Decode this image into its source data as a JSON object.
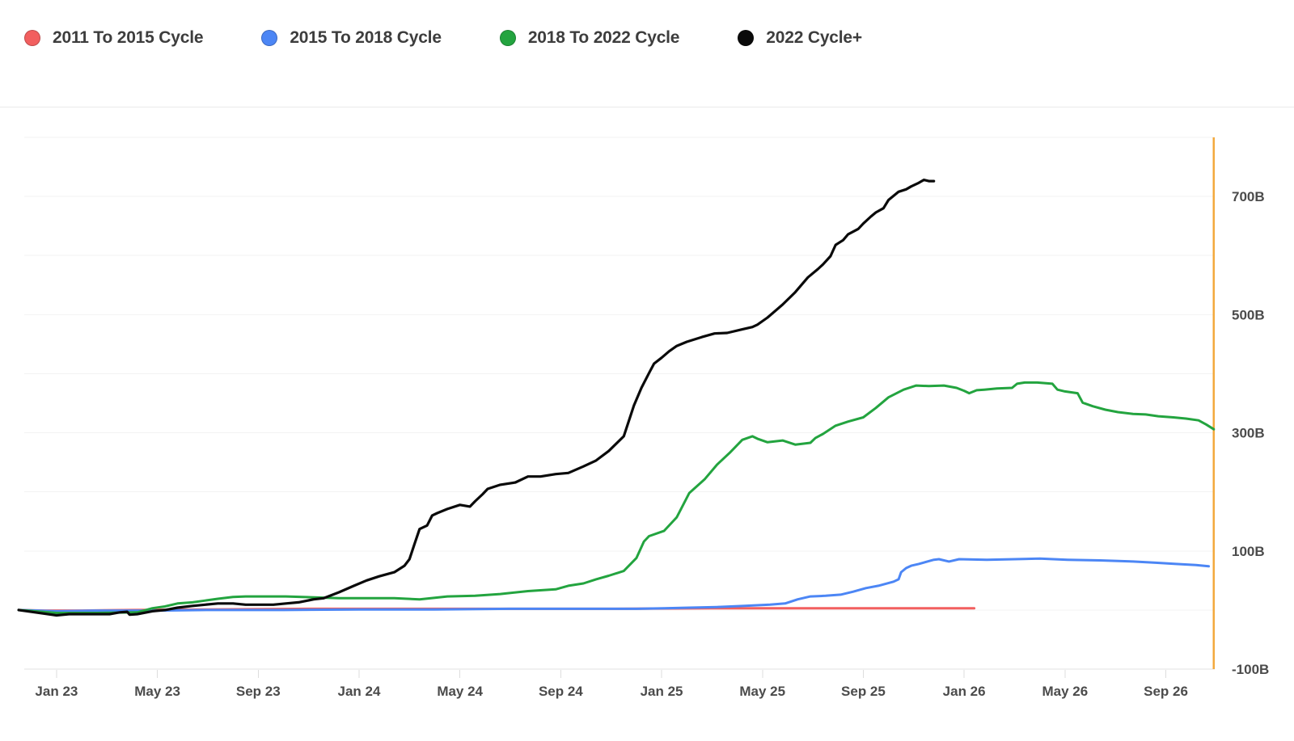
{
  "legend": {
    "items": [
      {
        "label": "2011 To 2015 Cycle",
        "color": "#F25F5F"
      },
      {
        "label": "2015 To 2018 Cycle",
        "color": "#4C86F5"
      },
      {
        "label": "2018 To 2022 Cycle",
        "color": "#23A43F"
      },
      {
        "label": "2022 Cycle+",
        "color": "#0A0A0A"
      }
    ]
  },
  "style": {
    "background": "#ffffff",
    "grid_color": "#f3f3f3",
    "axis_line_color": "#e2e2e2",
    "tick_mark_color": "#dddddd",
    "tick_text_color": "#4b4b4b",
    "legend_text_color": "#3d3d3d",
    "divider_color": "#ebebeb",
    "marker_line_color": "#F3A93D"
  },
  "chart_data": {
    "type": "line",
    "unit": "B",
    "x_unit": "months since Jan 2023",
    "legend_position": "top-left",
    "grid": "horizontal-only",
    "xlim": [
      -1.28,
      45.94
    ],
    "ylim": [
      -100,
      800
    ],
    "y_grid_values": [
      800,
      700,
      600,
      500,
      400,
      300,
      200,
      100,
      0,
      -100
    ],
    "x_ticks": [
      {
        "label": "Jan 23",
        "m": 0
      },
      {
        "label": "May 23",
        "m": 4
      },
      {
        "label": "Sep 23",
        "m": 8
      },
      {
        "label": "Jan 24",
        "m": 12
      },
      {
        "label": "May 24",
        "m": 16
      },
      {
        "label": "Sep 24",
        "m": 20
      },
      {
        "label": "Jan 25",
        "m": 24
      },
      {
        "label": "May 25",
        "m": 28
      },
      {
        "label": "Sep 25",
        "m": 32
      },
      {
        "label": "Jan 26",
        "m": 36
      },
      {
        "label": "May 26",
        "m": 40
      },
      {
        "label": "Sep 26",
        "m": 44
      }
    ],
    "y_ticks": [
      {
        "label": "700B",
        "v": 700
      },
      {
        "label": "500B",
        "v": 500
      },
      {
        "label": "300B",
        "v": 300
      },
      {
        "label": "100B",
        "v": 100
      },
      {
        "label": "-100B",
        "v": -100
      }
    ],
    "end_marker": {
      "name": "cycle-end-vertical-line",
      "color": "#F3A93D",
      "m": 45.9
    },
    "series": [
      {
        "name": "2011 To 2015 Cycle",
        "color": "#F25F5F",
        "width": 3,
        "points": [
          [
            -1.5,
            0
          ],
          [
            -0.5,
            -1
          ],
          [
            1,
            -1
          ],
          [
            3,
            0
          ],
          [
            6,
            1
          ],
          [
            10,
            2
          ],
          [
            14,
            2
          ],
          [
            18,
            2
          ],
          [
            22,
            2
          ],
          [
            26,
            3
          ],
          [
            30,
            3
          ],
          [
            34,
            3
          ],
          [
            36.4,
            3
          ]
        ]
      },
      {
        "name": "2015 To 2018 Cycle",
        "color": "#4C86F5",
        "width": 3,
        "points": [
          [
            -1.5,
            0
          ],
          [
            0,
            -2
          ],
          [
            1.5,
            -1
          ],
          [
            4,
            -1
          ],
          [
            6,
            0
          ],
          [
            9,
            0
          ],
          [
            12,
            1
          ],
          [
            15,
            1
          ],
          [
            18,
            2
          ],
          [
            21,
            2
          ],
          [
            23,
            2
          ],
          [
            24.1,
            3
          ],
          [
            25.1,
            4
          ],
          [
            26.2,
            5
          ],
          [
            27.3,
            7
          ],
          [
            28.3,
            9
          ],
          [
            28.9,
            11
          ],
          [
            29.4,
            18
          ],
          [
            29.9,
            23
          ],
          [
            30.5,
            24
          ],
          [
            31.1,
            26
          ],
          [
            31.6,
            31
          ],
          [
            32.1,
            37
          ],
          [
            32.6,
            41
          ],
          [
            33.2,
            48
          ],
          [
            33.4,
            52
          ],
          [
            33.5,
            64
          ],
          [
            33.7,
            71
          ],
          [
            33.9,
            75
          ],
          [
            34.2,
            78
          ],
          [
            34.8,
            85
          ],
          [
            35,
            86
          ],
          [
            35.4,
            82
          ],
          [
            35.8,
            86
          ],
          [
            36.9,
            85
          ],
          [
            38,
            86
          ],
          [
            39,
            87
          ],
          [
            40.1,
            85
          ],
          [
            41.4,
            84
          ],
          [
            42.7,
            82
          ],
          [
            43.6,
            80
          ],
          [
            44.4,
            78
          ],
          [
            45.2,
            76
          ],
          [
            45.7,
            74
          ]
        ]
      },
      {
        "name": "2018 To 2022 Cycle",
        "color": "#23A43F",
        "width": 3,
        "points": [
          [
            -1.5,
            0
          ],
          [
            0,
            -5
          ],
          [
            1.6,
            -5
          ],
          [
            3.2,
            -4
          ],
          [
            3.8,
            3
          ],
          [
            4.3,
            6
          ],
          [
            4.8,
            11
          ],
          [
            5.4,
            13
          ],
          [
            5.9,
            16
          ],
          [
            6.4,
            19
          ],
          [
            7,
            22
          ],
          [
            7.5,
            23
          ],
          [
            9.1,
            23
          ],
          [
            11.2,
            20
          ],
          [
            13.4,
            20
          ],
          [
            14.4,
            18
          ],
          [
            15.5,
            23
          ],
          [
            16.6,
            24
          ],
          [
            17.6,
            27
          ],
          [
            18.7,
            32
          ],
          [
            19.8,
            35
          ],
          [
            20.3,
            41
          ],
          [
            20.9,
            45
          ],
          [
            21.4,
            52
          ],
          [
            21.9,
            58
          ],
          [
            22.5,
            66
          ],
          [
            23,
            88
          ],
          [
            23.3,
            116
          ],
          [
            23.5,
            125
          ],
          [
            24.1,
            134
          ],
          [
            24.6,
            157
          ],
          [
            25.1,
            198
          ],
          [
            25.7,
            221
          ],
          [
            26.2,
            246
          ],
          [
            26.7,
            266
          ],
          [
            27.2,
            288
          ],
          [
            27.6,
            294
          ],
          [
            27.8,
            290
          ],
          [
            28.2,
            284
          ],
          [
            28.8,
            287
          ],
          [
            29.3,
            280
          ],
          [
            29.9,
            283
          ],
          [
            30.1,
            291
          ],
          [
            30.4,
            298
          ],
          [
            30.9,
            312
          ],
          [
            31.4,
            319
          ],
          [
            32,
            326
          ],
          [
            32.5,
            342
          ],
          [
            33,
            360
          ],
          [
            33.6,
            373
          ],
          [
            34.1,
            380
          ],
          [
            34.6,
            379
          ],
          [
            35.2,
            380
          ],
          [
            35.7,
            376
          ],
          [
            36,
            371
          ],
          [
            36.2,
            367
          ],
          [
            36.5,
            372
          ],
          [
            36.8,
            373
          ],
          [
            37.3,
            375
          ],
          [
            37.9,
            376
          ],
          [
            38.1,
            383
          ],
          [
            38.4,
            385
          ],
          [
            38.9,
            385
          ],
          [
            39.5,
            383
          ],
          [
            39.7,
            373
          ],
          [
            40,
            370
          ],
          [
            40.5,
            367
          ],
          [
            40.7,
            351
          ],
          [
            41.1,
            345
          ],
          [
            41.6,
            339
          ],
          [
            42.1,
            335
          ],
          [
            42.7,
            332
          ],
          [
            43.2,
            331
          ],
          [
            43.7,
            328
          ],
          [
            44.3,
            326
          ],
          [
            44.8,
            324
          ],
          [
            45.3,
            321
          ],
          [
            45.6,
            314
          ],
          [
            45.9,
            306
          ]
        ]
      },
      {
        "name": "2022 Cycle+",
        "color": "#0A0A0A",
        "width": 3.2,
        "points": [
          [
            -1.5,
            0
          ],
          [
            0,
            -9
          ],
          [
            0.5,
            -7
          ],
          [
            2.1,
            -7
          ],
          [
            2.5,
            -4
          ],
          [
            2.8,
            -3
          ],
          [
            2.9,
            -8
          ],
          [
            3.2,
            -7
          ],
          [
            3.8,
            -2
          ],
          [
            4.3,
            0
          ],
          [
            4.8,
            4
          ],
          [
            5.4,
            7
          ],
          [
            5.9,
            9
          ],
          [
            6.4,
            11
          ],
          [
            7,
            11
          ],
          [
            7.5,
            9
          ],
          [
            8.6,
            9
          ],
          [
            9.1,
            11
          ],
          [
            9.6,
            13
          ],
          [
            10.2,
            18
          ],
          [
            10.6,
            20
          ],
          [
            11.2,
            30
          ],
          [
            11.8,
            41
          ],
          [
            12.3,
            50
          ],
          [
            12.8,
            57
          ],
          [
            13.4,
            64
          ],
          [
            13.8,
            75
          ],
          [
            14,
            86
          ],
          [
            14.2,
            112
          ],
          [
            14.4,
            137
          ],
          [
            14.7,
            143
          ],
          [
            14.9,
            160
          ],
          [
            15.1,
            164
          ],
          [
            15.5,
            171
          ],
          [
            16,
            178
          ],
          [
            16.4,
            175
          ],
          [
            16.6,
            184
          ],
          [
            16.9,
            196
          ],
          [
            17.1,
            205
          ],
          [
            17.6,
            212
          ],
          [
            18.2,
            216
          ],
          [
            18.7,
            226
          ],
          [
            19.2,
            226
          ],
          [
            19.8,
            230
          ],
          [
            20.3,
            232
          ],
          [
            20.9,
            243
          ],
          [
            21.4,
            253
          ],
          [
            21.9,
            269
          ],
          [
            22.5,
            294
          ],
          [
            22.9,
            346
          ],
          [
            23.2,
            376
          ],
          [
            23.5,
            401
          ],
          [
            23.7,
            417
          ],
          [
            24,
            427
          ],
          [
            24.3,
            438
          ],
          [
            24.6,
            447
          ],
          [
            25,
            454
          ],
          [
            25.6,
            462
          ],
          [
            26.1,
            468
          ],
          [
            26.6,
            469
          ],
          [
            27.2,
            475
          ],
          [
            27.6,
            479
          ],
          [
            27.8,
            483
          ],
          [
            28.2,
            495
          ],
          [
            28.8,
            517
          ],
          [
            29.3,
            538
          ],
          [
            29.8,
            563
          ],
          [
            30.2,
            577
          ],
          [
            30.4,
            585
          ],
          [
            30.7,
            599
          ],
          [
            30.9,
            618
          ],
          [
            31.2,
            626
          ],
          [
            31.4,
            636
          ],
          [
            31.8,
            645
          ],
          [
            32,
            654
          ],
          [
            32.3,
            666
          ],
          [
            32.5,
            673
          ],
          [
            32.8,
            680
          ],
          [
            33,
            694
          ],
          [
            33.4,
            708
          ],
          [
            33.7,
            712
          ],
          [
            33.9,
            717
          ],
          [
            34.2,
            723
          ],
          [
            34.4,
            728
          ],
          [
            34.6,
            726
          ],
          [
            34.8,
            726
          ]
        ]
      }
    ]
  }
}
